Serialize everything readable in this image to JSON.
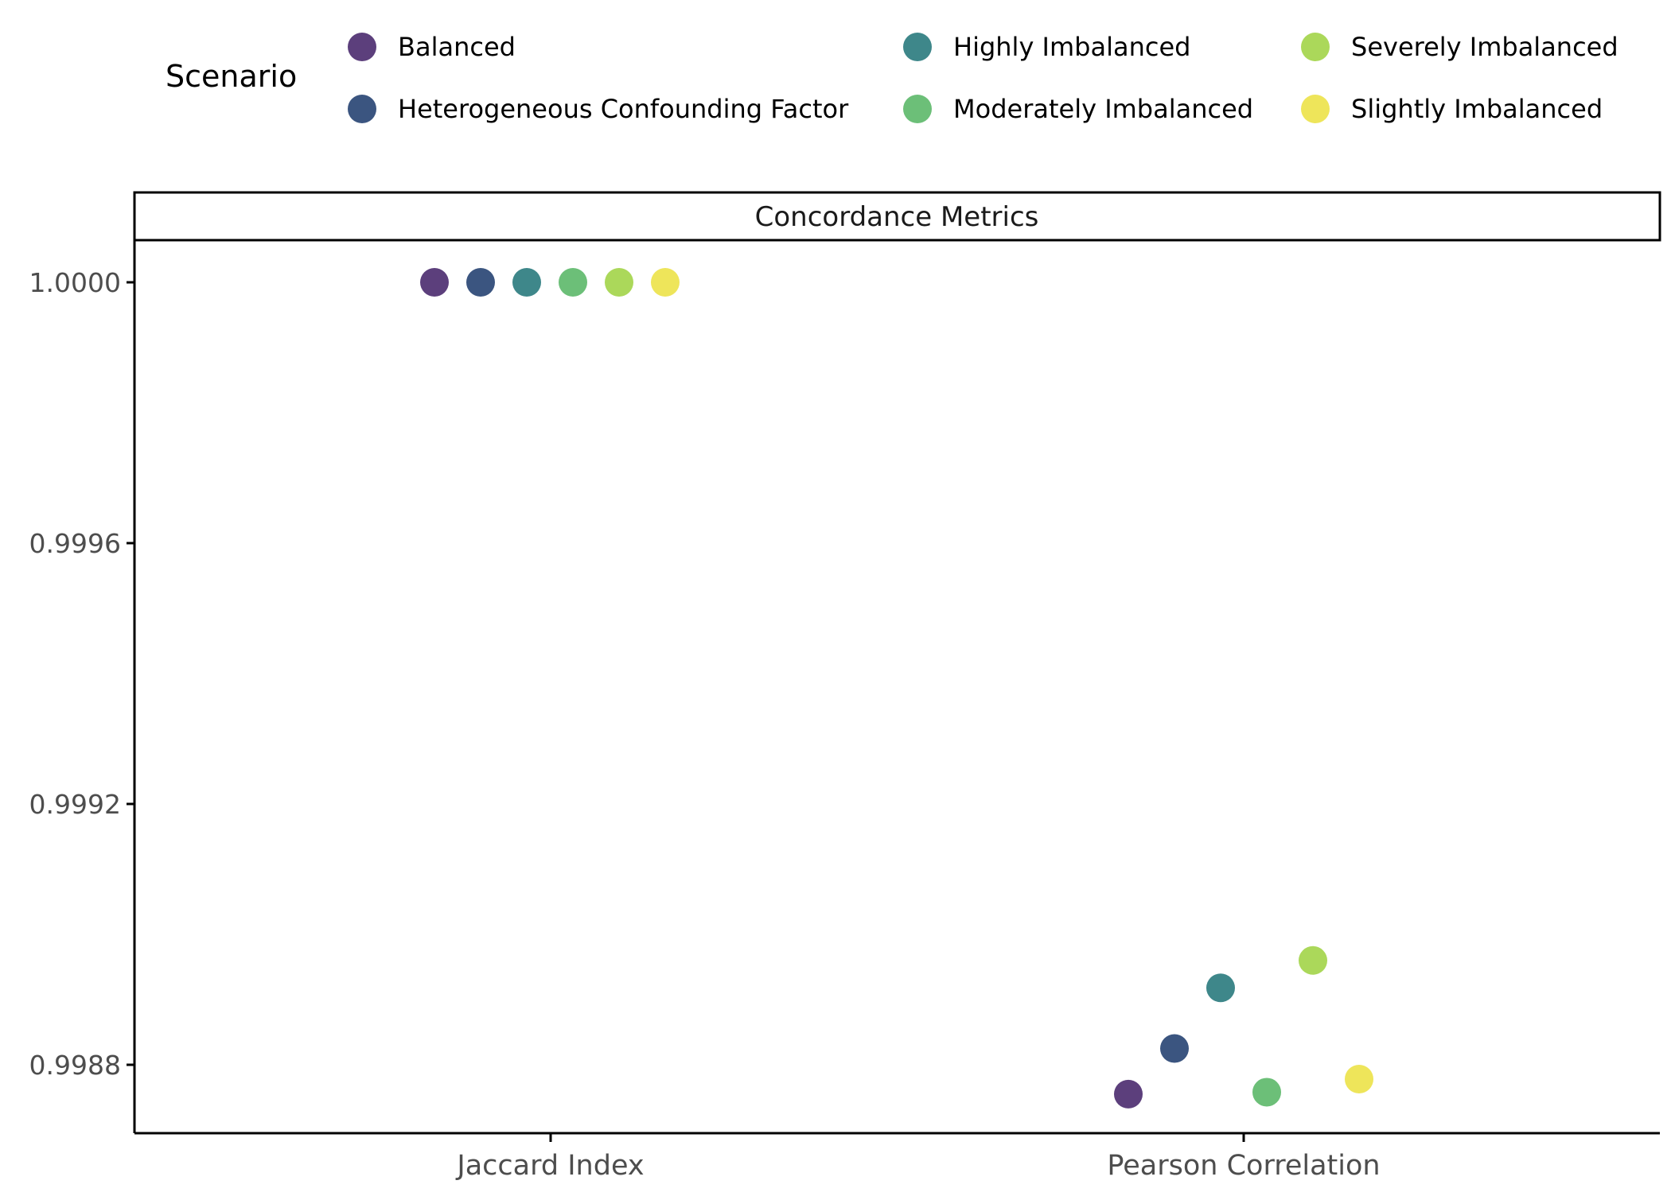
{
  "chart_data": {
    "type": "scatter",
    "legend": {
      "title": "Scenario",
      "placement": "top",
      "entries": [
        {
          "name": "Balanced",
          "color": "#5C3F7C"
        },
        {
          "name": "Heterogeneous Confounding Factor",
          "color": "#3B5580"
        },
        {
          "name": "Highly Imbalanced",
          "color": "#3E878A"
        },
        {
          "name": "Moderately Imbalanced",
          "color": "#6CBF78"
        },
        {
          "name": "Severely Imbalanced",
          "color": "#ABD85A"
        },
        {
          "name": "Slightly Imbalanced",
          "color": "#EEE55A"
        }
      ]
    },
    "facet_label": "Concordance Metrics",
    "categories": [
      "Jaccard Index",
      "Pearson Correlation"
    ],
    "y_ticks": [
      {
        "value": 0.9988,
        "label": "0.9988"
      },
      {
        "value": 0.9992,
        "label": "0.9992"
      },
      {
        "value": 0.9996,
        "label": "0.9996"
      },
      {
        "value": 1.0,
        "label": "1.0000"
      }
    ],
    "ylim": [
      0.99869,
      1.00014
    ],
    "grid": false,
    "series": [
      {
        "name": "Balanced",
        "values": [
          1.0,
          0.998755
        ]
      },
      {
        "name": "Heterogeneous Confounding Factor",
        "values": [
          1.0,
          0.998825
        ]
      },
      {
        "name": "Highly Imbalanced",
        "values": [
          1.0,
          0.998918
        ]
      },
      {
        "name": "Moderately Imbalanced",
        "values": [
          1.0,
          0.998758
        ]
      },
      {
        "name": "Severely Imbalanced",
        "values": [
          1.0,
          0.99896
        ]
      },
      {
        "name": "Slightly Imbalanced",
        "values": [
          1.0,
          0.998778
        ]
      }
    ]
  }
}
